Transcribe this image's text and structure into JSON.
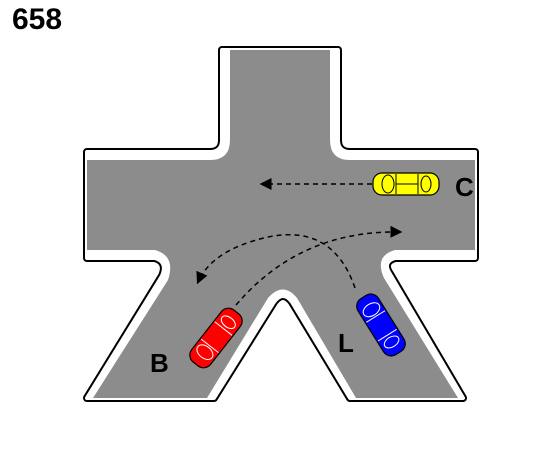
{
  "question_number": "658",
  "vehicles": [
    {
      "label": "C",
      "color": "#ffff00",
      "direction": "left"
    },
    {
      "label": "L",
      "color": "#0000ff",
      "direction": "left-turn"
    },
    {
      "label": "B",
      "color": "#ff0000",
      "direction": "left-turn"
    }
  ],
  "colors": {
    "road": "#8c8c8c",
    "edge": "#000000",
    "edge_line": "#ffffff",
    "background": "#ffffff"
  }
}
